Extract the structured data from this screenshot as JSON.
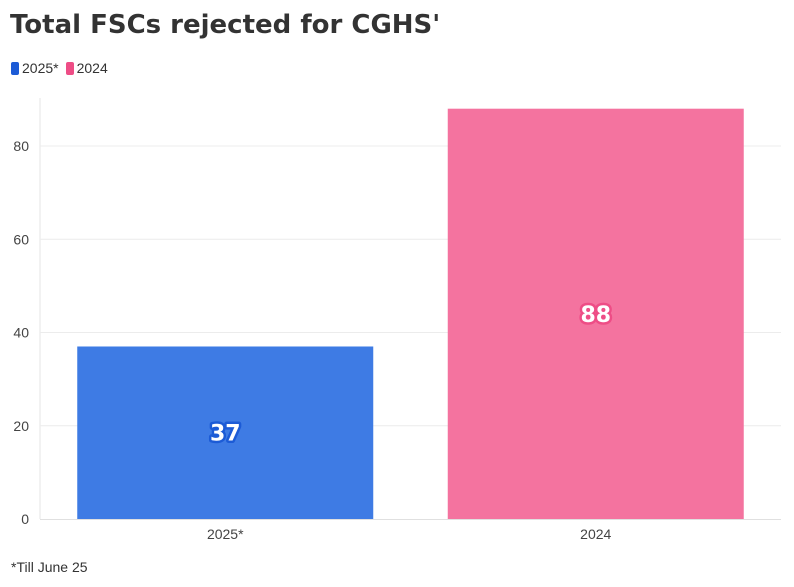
{
  "chart_data": {
    "type": "bar",
    "title": "Total FSCs rejected for CGHS'",
    "categories": [
      "2025*",
      "2024"
    ],
    "values": [
      37,
      88
    ],
    "colors": [
      "#3e7be4",
      "#f4739f"
    ],
    "label_outline_colors": [
      "#1c5bd6",
      "#ee4d86"
    ],
    "legend": [
      {
        "label": "2025*",
        "color": "#1c5bd6"
      },
      {
        "label": "2024",
        "color": "#ee4d86"
      }
    ],
    "legend_position": "top-left",
    "y_ticks": [
      "0",
      "20",
      "40",
      "60",
      "80"
    ],
    "ylim": [
      0,
      88
    ],
    "grid": true,
    "xlabel": "",
    "ylabel": "",
    "footnote": "*Till June 25"
  }
}
